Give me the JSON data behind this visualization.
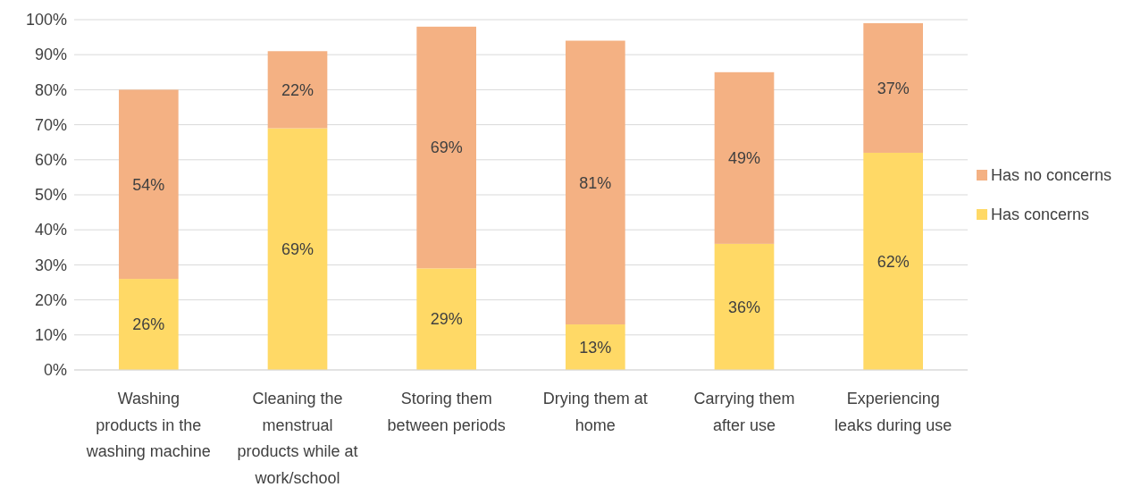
{
  "chart_data": {
    "type": "bar",
    "stacked": true,
    "categories": [
      "Washing products in the washing machine",
      "Cleaning the menstrual products while at work/school",
      "Storing them between periods",
      "Drying them at home",
      "Carrying them after use",
      "Experiencing leaks during use"
    ],
    "series": [
      {
        "name": "Has concerns",
        "color": "#ffd966",
        "values": [
          26,
          69,
          29,
          13,
          36,
          62
        ],
        "value_labels": [
          "26%",
          "69%",
          "29%",
          "13%",
          "36%",
          "62%"
        ]
      },
      {
        "name": "Has no concerns",
        "color": "#f4b183",
        "values": [
          54,
          22,
          69,
          81,
          49,
          37
        ],
        "value_labels": [
          "54%",
          "22%",
          "69%",
          "81%",
          "49%",
          "37%"
        ]
      }
    ],
    "ylim": [
      0,
      100
    ],
    "yticks": [
      {
        "value": 0,
        "label": "0%"
      },
      {
        "value": 10,
        "label": "10%"
      },
      {
        "value": 20,
        "label": "20%"
      },
      {
        "value": 30,
        "label": "30%"
      },
      {
        "value": 40,
        "label": "40%"
      },
      {
        "value": 50,
        "label": "50%"
      },
      {
        "value": 60,
        "label": "60%"
      },
      {
        "value": 70,
        "label": "70%"
      },
      {
        "value": 80,
        "label": "80%"
      },
      {
        "value": 90,
        "label": "90%"
      },
      {
        "value": 100,
        "label": "100%"
      }
    ],
    "grid": "y",
    "legend": "right"
  }
}
